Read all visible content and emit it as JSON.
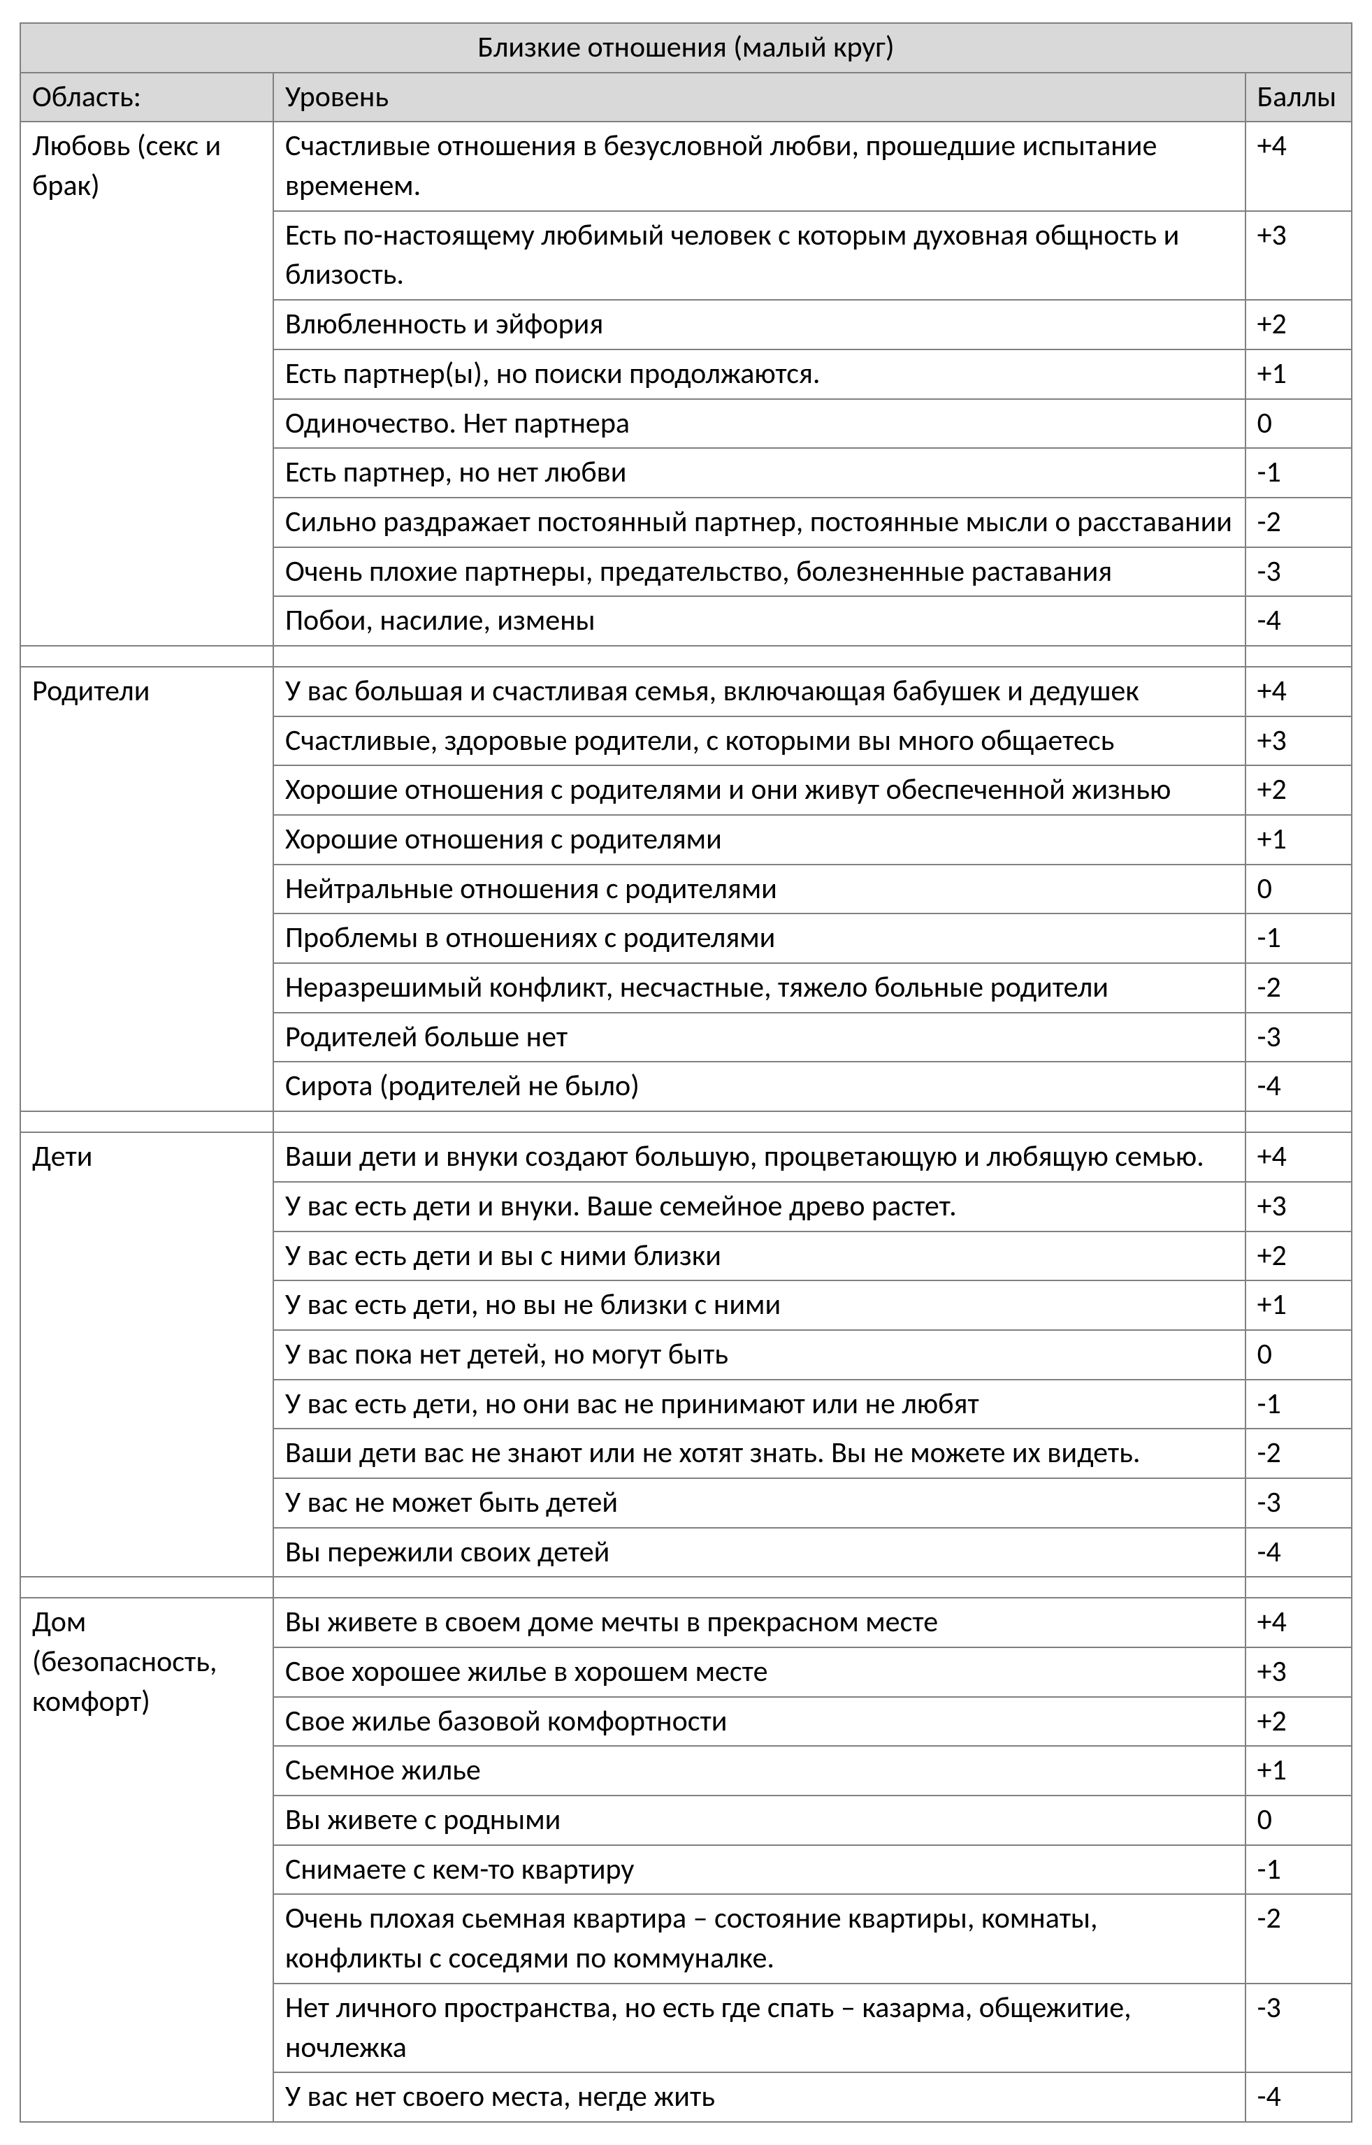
{
  "title": "Близкие отношения (малый круг)",
  "headers": {
    "area": "Область:",
    "level": "Уровень",
    "score": "Баллы"
  },
  "sections": [
    {
      "area": "Любовь (секс и брак)",
      "rows": [
        {
          "level": "Счастливые отношения в безусловной любви, прошедшие испытание временем.",
          "score": "+4"
        },
        {
          "level": "Есть по-настоящему любимый человек с которым духовная общность и близость.",
          "score": "+3"
        },
        {
          "level": "Влюбленность и эйфория",
          "score": "+2"
        },
        {
          "level": "Есть партнер(ы), но поиски продолжаются.",
          "score": "+1"
        },
        {
          "level": "Одиночество. Нет партнера",
          "score": "0"
        },
        {
          "level": "Есть партнер, но нет любви",
          "score": "-1"
        },
        {
          "level": "Сильно раздражает постоянный партнер, постоянные мысли о расставании",
          "score": "-2"
        },
        {
          "level": "Очень плохие партнеры, предательство, болезненные раставания",
          "score": "-3"
        },
        {
          "level": "Побои, насилие, измены",
          "score": "-4"
        }
      ]
    },
    {
      "area": "Родители",
      "rows": [
        {
          "level": "У вас большая и счастливая семья, включающая бабушек и дедушек",
          "score": "+4"
        },
        {
          "level": "Счастливые, здоровые родители, с которыми вы много общаетесь",
          "score": "+3"
        },
        {
          "level": "Хорошие отношения с родителями и они живут обеспеченной жизнью",
          "score": "+2"
        },
        {
          "level": "Хорошие отношения с родителями",
          "score": "+1"
        },
        {
          "level": "Нейтральные отношения с родителями",
          "score": "0"
        },
        {
          "level": "Проблемы в отношениях с родителями",
          "score": "-1"
        },
        {
          "level": "Неразрешимый конфликт, несчастные, тяжело больные родители",
          "score": "-2"
        },
        {
          "level": "Родителей больше нет",
          "score": "-3"
        },
        {
          "level": "Сирота (родителей не было)",
          "score": "-4"
        }
      ]
    },
    {
      "area": "Дети",
      "rows": [
        {
          "level": "Ваши дети и внуки создают большую, процветающую и любящую семью.",
          "score": "+4"
        },
        {
          "level": "У вас есть дети и внуки. Ваше семейное древо растет.",
          "score": "+3"
        },
        {
          "level": "У вас есть дети и вы с ними близки",
          "score": "+2"
        },
        {
          "level": "У вас есть дети, но вы не близки с ними",
          "score": "+1"
        },
        {
          "level": "У вас пока нет детей, но могут быть",
          "score": "0"
        },
        {
          "level": "У вас есть дети, но они вас не принимают или не любят",
          "score": "-1"
        },
        {
          "level": "Ваши дети вас не знают или не хотят знать. Вы не можете их видеть.",
          "score": "-2"
        },
        {
          "level": "У вас не может быть детей",
          "score": "-3"
        },
        {
          "level": "Вы пережили своих детей",
          "score": "-4"
        }
      ]
    },
    {
      "area": "Дом (безопасность, комфорт)",
      "rows": [
        {
          "level": "Вы живете в своем доме мечты в прекрасном месте",
          "score": "+4"
        },
        {
          "level": "Свое хорошее жилье в хорошем месте",
          "score": "+3"
        },
        {
          "level": "Свое жилье базовой комфортности",
          "score": "+2"
        },
        {
          "level": "Сьемное жилье",
          "score": "+1"
        },
        {
          "level": "Вы живете с родными",
          "score": "0"
        },
        {
          "level": "Снимаете с кем-то квартиру",
          "score": "-1"
        },
        {
          "level": "Очень плохая сьемная квартира – состояние квартиры, комнаты, конфликты с соседями по коммуналке.",
          "score": "-2"
        },
        {
          "level": "Нет личного пространства, но есть где спать – казарма, общежитие, ночлежка",
          "score": "-3"
        },
        {
          "level": "У вас нет своего места, негде жить",
          "score": "-4"
        }
      ]
    }
  ]
}
